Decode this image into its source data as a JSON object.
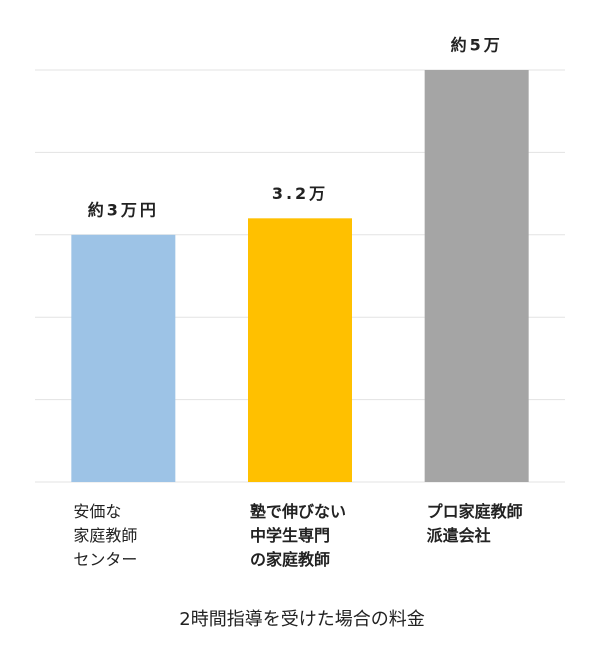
{
  "chart_data": {
    "type": "bar",
    "x_label": "2時間指導を受けた場合の料金",
    "categories": [
      [
        "安価な",
        "家庭教師",
        "センター"
      ],
      [
        "塾で伸びない",
        "中学生専門",
        "の家庭教師"
      ],
      [
        "プロ家庭教師",
        "派遣会社"
      ]
    ],
    "values": [
      3,
      3.2,
      5
    ],
    "value_labels": [
      "約3万円",
      "3.2万",
      "約5万"
    ],
    "colors": [
      "#9dc3e6",
      "#ffc000",
      "#a5a5a5"
    ],
    "ylim": [
      0,
      5
    ],
    "yticks": [
      0,
      1,
      2,
      3,
      4,
      5
    ],
    "grid": true
  }
}
